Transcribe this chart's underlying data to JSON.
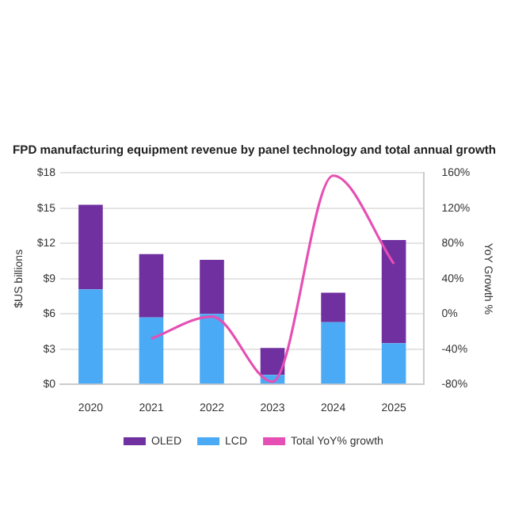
{
  "chart_data": {
    "type": "bar",
    "title": "FPD manufacturing equipment revenue by panel technology and total annual growth",
    "categories": [
      "2020",
      "2021",
      "2022",
      "2023",
      "2024",
      "2025"
    ],
    "stacked": true,
    "series": [
      {
        "name": "LCD",
        "color": "#4baaf5",
        "values": [
          8.1,
          5.7,
          6.0,
          0.8,
          5.3,
          3.5
        ]
      },
      {
        "name": "OLED",
        "color": "#7030a0",
        "values": [
          7.2,
          5.4,
          4.6,
          2.3,
          2.5,
          8.8
        ]
      },
      {
        "name": "Total YoY% growth",
        "type": "line",
        "axis": "y2",
        "color": "#e64fb4",
        "values": [
          null,
          -28,
          -3,
          -77,
          157,
          57
        ]
      }
    ],
    "ylabel": "$US billions",
    "y2label": "YoY Growth %",
    "ylim": [
      0,
      18
    ],
    "yticks": [
      {
        "value": 0,
        "label": "$0"
      },
      {
        "value": 3,
        "label": "$3"
      },
      {
        "value": 6,
        "label": "$6"
      },
      {
        "value": 9,
        "label": "$9"
      },
      {
        "value": 12,
        "label": "$12"
      },
      {
        "value": 15,
        "label": "$15"
      },
      {
        "value": 18,
        "label": "$18"
      }
    ],
    "y2lim": [
      -80,
      160
    ],
    "y2ticks": [
      {
        "value": -80,
        "label": "-80%"
      },
      {
        "value": -40,
        "label": "-40%"
      },
      {
        "value": 0,
        "label": "0%"
      },
      {
        "value": 40,
        "label": "40%"
      },
      {
        "value": 80,
        "label": "80%"
      },
      {
        "value": 120,
        "label": "120%"
      },
      {
        "value": 160,
        "label": "160%"
      }
    ],
    "grid": "y",
    "legend": "bottom",
    "marker": "none"
  }
}
